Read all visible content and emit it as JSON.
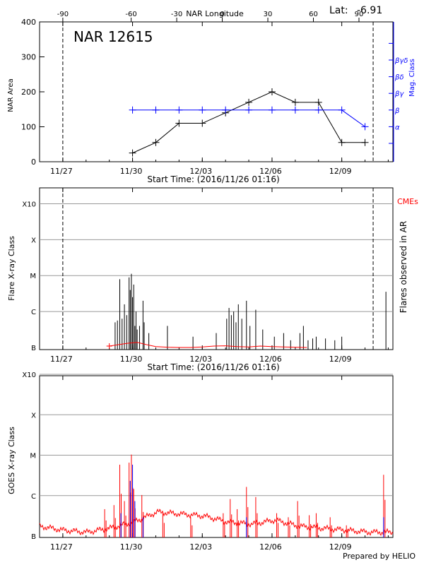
{
  "header": {
    "longitude_title": "NAR Longitude",
    "lat_label": "Lat:",
    "lat_value": "-6.91",
    "footer": "Prepared by HELIO"
  },
  "colors": {
    "black": "#000000",
    "blue": "#0000ff",
    "red": "#ff0000",
    "grid": "#999999"
  },
  "chart_data": [
    {
      "type": "line",
      "name": "area-panel",
      "title": "NAR 12615",
      "xlabel": "Start Time: (2016/11/26 01:16)",
      "ylabel": "NAR Area",
      "y2label": "Mag. Class",
      "xlim": [
        0,
        15.2
      ],
      "ylim": [
        0,
        400
      ],
      "yticks": [
        0,
        100,
        200,
        300,
        400
      ],
      "xtick_positions": [
        1,
        4,
        7,
        10,
        13
      ],
      "xtick_labels": [
        "11/27",
        "11/30",
        "12/03",
        "12/06",
        "12/09"
      ],
      "top_axis_ticks": [
        -90,
        -60,
        -30,
        0,
        30,
        60,
        90
      ],
      "top_axis_positions": [
        1.0,
        3.94,
        5.9,
        7.86,
        9.82,
        11.78,
        13.74
      ],
      "dashed_lines": [
        1.0,
        14.35
      ],
      "mag_class_labels": [
        "α",
        "β",
        "βγ",
        "βδ",
        "βγδ"
      ],
      "mag_class_values": [
        1,
        2,
        3,
        4,
        5
      ],
      "series": [
        {
          "name": "NAR Area",
          "color": "#000000",
          "x": [
            4,
            5,
            6,
            7,
            8,
            9,
            10,
            11,
            12,
            13,
            14
          ],
          "y": [
            25,
            55,
            110,
            110,
            140,
            170,
            200,
            170,
            170,
            55,
            55
          ]
        },
        {
          "name": "Mag. Class",
          "color": "#0000ff",
          "x": [
            4,
            5,
            6,
            7,
            8,
            9,
            10,
            11,
            12,
            13,
            14
          ],
          "y": [
            2,
            2,
            2,
            2,
            2,
            2,
            2,
            2,
            2,
            2,
            1
          ]
        }
      ]
    },
    {
      "type": "bar",
      "name": "flare-panel",
      "xlabel": "Start Time: (2016/11/26 01:16)",
      "ylabel": "Flare X-ray Class",
      "y2label": "Flares observed in AR",
      "legend": "CMEs",
      "xlim": [
        0,
        15.2
      ],
      "ylim": [
        0,
        4.5
      ],
      "ytick_labels": [
        "B",
        "C",
        "M",
        "X",
        "X10"
      ],
      "ytick_values": [
        0,
        1,
        2,
        3,
        4
      ],
      "xtick_positions": [
        1,
        4,
        7,
        10,
        13
      ],
      "xtick_labels": [
        "11/27",
        "11/30",
        "12/03",
        "12/06",
        "12/09"
      ],
      "dashed_lines": [
        1.0,
        14.35
      ],
      "flares": [
        [
          3.25,
          0.7
        ],
        [
          3.35,
          0.75
        ],
        [
          3.45,
          1.9
        ],
        [
          3.55,
          0.8
        ],
        [
          3.65,
          1.2
        ],
        [
          3.75,
          0.9
        ],
        [
          3.85,
          1.95
        ],
        [
          3.9,
          1.6
        ],
        [
          3.95,
          2.05
        ],
        [
          4.0,
          1.4
        ],
        [
          4.05,
          1.75
        ],
        [
          4.1,
          0.6
        ],
        [
          4.15,
          1.0
        ],
        [
          4.2,
          0.5
        ],
        [
          4.3,
          0.6
        ],
        [
          4.45,
          1.3
        ],
        [
          4.5,
          0.7
        ],
        [
          4.7,
          0.4
        ],
        [
          5.5,
          0.6
        ],
        [
          6.6,
          0.3
        ],
        [
          7.6,
          0.4
        ],
        [
          8.05,
          0.8
        ],
        [
          8.15,
          1.1
        ],
        [
          8.25,
          0.9
        ],
        [
          8.35,
          1.0
        ],
        [
          8.45,
          0.7
        ],
        [
          8.55,
          1.2
        ],
        [
          8.7,
          0.8
        ],
        [
          8.9,
          1.3
        ],
        [
          9.05,
          0.6
        ],
        [
          9.3,
          1.05
        ],
        [
          9.6,
          0.5
        ],
        [
          10.1,
          0.3
        ],
        [
          10.5,
          0.4
        ],
        [
          10.8,
          0.2
        ],
        [
          11.2,
          0.4
        ],
        [
          11.35,
          0.6
        ],
        [
          11.55,
          0.2
        ],
        [
          11.75,
          0.25
        ],
        [
          11.9,
          0.3
        ],
        [
          12.3,
          0.25
        ],
        [
          12.7,
          0.2
        ],
        [
          13.0,
          0.3
        ],
        [
          14.9,
          1.55
        ]
      ],
      "cme_x": [
        3.0,
        3.4,
        3.8,
        4.2,
        4.6,
        5.0,
        5.5,
        6.0,
        6.5,
        7.0,
        7.5,
        8.0,
        8.5,
        9.0,
        9.5,
        10.0,
        10.5,
        11.0,
        11.5
      ],
      "cme_y": [
        0.05,
        0.1,
        0.15,
        0.18,
        0.1,
        0.03,
        0.01,
        0.0,
        0.0,
        0.02,
        0.05,
        0.06,
        0.03,
        0.02,
        0.05,
        0.03,
        0.02,
        0.01,
        0.0
      ]
    },
    {
      "type": "line",
      "name": "goes-panel",
      "xlabel": "",
      "ylabel": "GOES X-ray Class",
      "xlim": [
        0,
        15.2
      ],
      "ylim": [
        0,
        4.0
      ],
      "ytick_labels": [
        "B",
        "C",
        "M",
        "X",
        "X10"
      ],
      "ytick_values": [
        0,
        1,
        2,
        3,
        4
      ],
      "xtick_positions": [
        1,
        4,
        7,
        10,
        13
      ],
      "xtick_labels": [
        "11/27",
        "11/30",
        "12/03",
        "12/06",
        "12/09"
      ],
      "baseline_noise": [
        0.2,
        0.1,
        0.05,
        0.15,
        0.3,
        0.55,
        0.5,
        0.45,
        0.3,
        0.25,
        0.35,
        0.2,
        0.15,
        0.1,
        0.05,
        0.05
      ],
      "spikes": [
        [
          2.8,
          0.7
        ],
        [
          3.2,
          0.8
        ],
        [
          3.45,
          1.8
        ],
        [
          3.65,
          0.9
        ],
        [
          3.85,
          1.85
        ],
        [
          3.95,
          2.05
        ],
        [
          4.05,
          1.2
        ],
        [
          4.4,
          1.05
        ],
        [
          5.3,
          0.6
        ],
        [
          6.5,
          0.5
        ],
        [
          7.9,
          0.6
        ],
        [
          8.2,
          0.95
        ],
        [
          8.5,
          0.7
        ],
        [
          8.9,
          1.25
        ],
        [
          9.3,
          1.0
        ],
        [
          10.2,
          0.6
        ],
        [
          10.7,
          0.5
        ],
        [
          11.1,
          0.9
        ],
        [
          11.6,
          0.55
        ],
        [
          11.9,
          0.6
        ],
        [
          12.5,
          0.5
        ],
        [
          13.2,
          0.3
        ],
        [
          14.8,
          1.55
        ]
      ],
      "blue_spikes": [
        [
          3.5,
          0.6
        ],
        [
          3.9,
          1.4
        ],
        [
          4.0,
          1.8
        ],
        [
          4.1,
          0.9
        ],
        [
          4.45,
          0.5
        ],
        [
          8.9,
          0.5
        ],
        [
          14.8,
          0.5
        ]
      ]
    }
  ]
}
